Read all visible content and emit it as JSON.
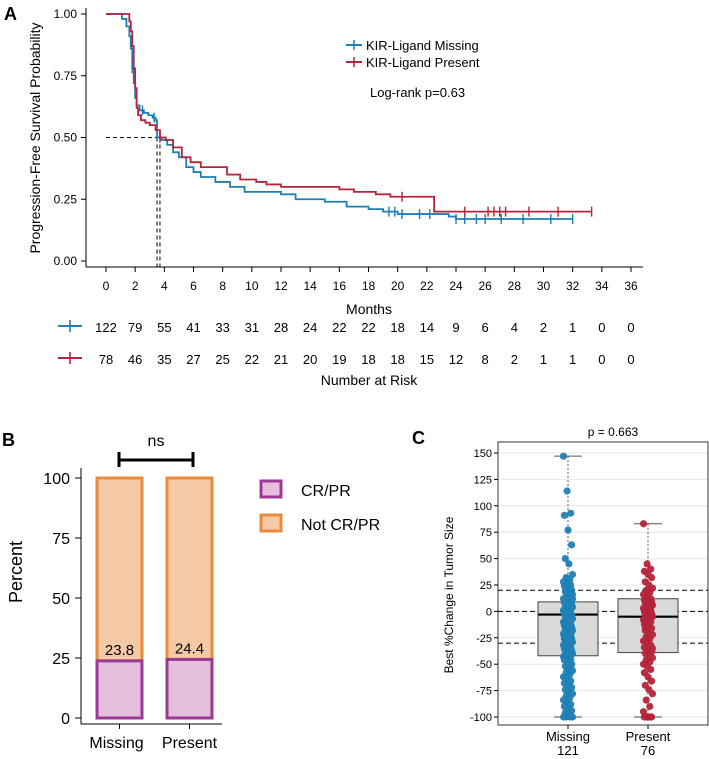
{
  "colors": {
    "missing": "#1f7fb4",
    "present": "#b5243a",
    "crpr_fill": "#e3bfdc",
    "crpr_edge": "#9b3a96",
    "notcrpr_fill": "#f5c8a6",
    "notcrpr_edge": "#ec8a3b",
    "box_fill": "#d9d9d9"
  },
  "chart_data": [
    {
      "panel": "A",
      "type": "line",
      "subtype": "kaplan-meier",
      "ylabel": "Progression-Free Survival Probability",
      "xlabel": "Months",
      "xlim": [
        -1,
        37.5
      ],
      "ylim": [
        0,
        1
      ],
      "xticks": [
        "0",
        "2",
        "4",
        "6",
        "8",
        "10",
        "12",
        "14",
        "16",
        "18",
        "20",
        "22",
        "24",
        "26",
        "28",
        "30",
        "32",
        "34",
        "36"
      ],
      "yticks": [
        "0.00",
        "0.25",
        "0.50",
        "0.75",
        "1.00"
      ],
      "annotation": "Log-rank p=0.63",
      "median_line": {
        "y": 0.5,
        "x_missing": 3.5,
        "x_present": 3.7
      },
      "series": [
        {
          "name": "KIR-Ligand Missing",
          "steps": [
            [
              0,
              1.0
            ],
            [
              1.0,
              1.0
            ],
            [
              1.1,
              0.98
            ],
            [
              1.4,
              0.95
            ],
            [
              1.6,
              0.91
            ],
            [
              1.7,
              0.86
            ],
            [
              1.8,
              0.78
            ],
            [
              1.9,
              0.72
            ],
            [
              2.0,
              0.66
            ],
            [
              2.1,
              0.63
            ],
            [
              2.3,
              0.61
            ],
            [
              2.6,
              0.6
            ],
            [
              2.9,
              0.59
            ],
            [
              3.2,
              0.58
            ],
            [
              3.4,
              0.57
            ],
            [
              3.5,
              0.5
            ],
            [
              3.8,
              0.49
            ],
            [
              4.2,
              0.47
            ],
            [
              4.6,
              0.44
            ],
            [
              5.0,
              0.42
            ],
            [
              5.5,
              0.38
            ],
            [
              6.0,
              0.36
            ],
            [
              6.5,
              0.34
            ],
            [
              7.5,
              0.32
            ],
            [
              8.5,
              0.3
            ],
            [
              9.5,
              0.28
            ],
            [
              12.0,
              0.27
            ],
            [
              13.0,
              0.25
            ],
            [
              15.0,
              0.24
            ],
            [
              16.5,
              0.22
            ],
            [
              18.0,
              0.21
            ],
            [
              19.0,
              0.2
            ],
            [
              20.0,
              0.19
            ],
            [
              23.5,
              0.18
            ],
            [
              24.0,
              0.17
            ],
            [
              32.0,
              0.17
            ]
          ],
          "censor_times": [
            1.8,
            2.5,
            3.3,
            19.4,
            19.8,
            20.3,
            21.5,
            22.2,
            24.0,
            24.6,
            25.4,
            26.0,
            27.1,
            28.6,
            30.5,
            32.0
          ]
        },
        {
          "name": "KIR-Ligand Present",
          "steps": [
            [
              0,
              1.0
            ],
            [
              1.5,
              1.0
            ],
            [
              1.6,
              0.97
            ],
            [
              1.7,
              0.93
            ],
            [
              1.8,
              0.87
            ],
            [
              1.9,
              0.78
            ],
            [
              2.0,
              0.7
            ],
            [
              2.1,
              0.62
            ],
            [
              2.2,
              0.59
            ],
            [
              2.4,
              0.57
            ],
            [
              2.7,
              0.56
            ],
            [
              3.0,
              0.55
            ],
            [
              3.4,
              0.53
            ],
            [
              3.7,
              0.5
            ],
            [
              4.1,
              0.49
            ],
            [
              4.6,
              0.46
            ],
            [
              5.2,
              0.42
            ],
            [
              5.8,
              0.4
            ],
            [
              6.5,
              0.38
            ],
            [
              8.3,
              0.35
            ],
            [
              9.2,
              0.33
            ],
            [
              10.3,
              0.32
            ],
            [
              11.0,
              0.31
            ],
            [
              12.0,
              0.3
            ],
            [
              16.0,
              0.29
            ],
            [
              17.0,
              0.28
            ],
            [
              18.5,
              0.27
            ],
            [
              19.5,
              0.26
            ],
            [
              22.5,
              0.2
            ],
            [
              26.0,
              0.2
            ],
            [
              33.3,
              0.2
            ]
          ],
          "censor_times": [
            3.7,
            20.3,
            24.6,
            26.2,
            26.6,
            27.0,
            27.4,
            29.0,
            31.0,
            33.3
          ]
        }
      ],
      "risk_table": {
        "label": "Number at Risk",
        "rows": [
          {
            "name": "KIR-Ligand Missing",
            "values": [
              "122",
              "79",
              "55",
              "41",
              "33",
              "31",
              "28",
              "24",
              "22",
              "22",
              "18",
              "14",
              "9",
              "6",
              "4",
              "2",
              "1",
              "0",
              "0"
            ]
          },
          {
            "name": "KIR-Ligand Present",
            "values": [
              "78",
              "46",
              "35",
              "27",
              "25",
              "22",
              "21",
              "20",
              "19",
              "18",
              "18",
              "15",
              "12",
              "8",
              "2",
              "1",
              "1",
              "0",
              "0"
            ]
          }
        ]
      }
    },
    {
      "panel": "B",
      "type": "bar",
      "subtype": "stacked-percent",
      "ylabel": "Percent",
      "categories": [
        "Missing",
        "Present"
      ],
      "ylim": [
        0,
        100
      ],
      "yticks": [
        "0",
        "25",
        "50",
        "75",
        "100"
      ],
      "series": [
        {
          "name": "CR/PR",
          "values": [
            23.8,
            24.4
          ],
          "labels": [
            "23.8",
            "24.4"
          ]
        },
        {
          "name": "Not CR/PR",
          "values": [
            76.2,
            75.6
          ]
        }
      ],
      "significance": "ns"
    },
    {
      "panel": "C",
      "type": "scatter",
      "subtype": "box-and-strip",
      "title": "p = 0.663",
      "ylabel": "Best %Change in Tumor Size",
      "ylim": [
        -110,
        155
      ],
      "yticks": [
        "-100",
        "-75",
        "-50",
        "-25",
        "0",
        "25",
        "50",
        "75",
        "100",
        "125",
        "150"
      ],
      "reference_lines": [
        20,
        0,
        -30
      ],
      "groups": [
        {
          "name": "Missing",
          "n": "121",
          "box": {
            "q1": -42,
            "median": -3,
            "q3": 9,
            "whisker_low": -100,
            "whisker_high": 147
          },
          "points": [
            147,
            114,
            93,
            91,
            77,
            63,
            50,
            45,
            35,
            32,
            30,
            28,
            27,
            25,
            24,
            22,
            20,
            19,
            17,
            16,
            15,
            14,
            12,
            11,
            10,
            9,
            8,
            7,
            6,
            5,
            4,
            3,
            2,
            1,
            0,
            -1,
            -2,
            -3,
            -4,
            -5,
            -6,
            -7,
            -8,
            -9,
            -10,
            -11,
            -12,
            -13,
            -14,
            -15,
            -16,
            -17,
            -18,
            -19,
            -20,
            -21,
            -22,
            -23,
            -24,
            -25,
            -26,
            -27,
            -28,
            -29,
            -30,
            -31,
            -32,
            -33,
            -34,
            -35,
            -36,
            -37,
            -38,
            -39,
            -40,
            -41,
            -42,
            -43,
            -44,
            -45,
            -46,
            -48,
            -50,
            -52,
            -54,
            -56,
            -58,
            -60,
            -62,
            -64,
            -66,
            -68,
            -70,
            -72,
            -74,
            -76,
            -78,
            -80,
            -82,
            -84,
            -86,
            -88,
            -90,
            -92,
            -94,
            -96,
            -98,
            -100,
            -100,
            -100,
            -100,
            -18,
            -22,
            -26,
            -8,
            -4,
            2,
            6,
            12,
            18,
            -34
          ]
        },
        {
          "name": "Present",
          "n": "76",
          "box": {
            "q1": -39,
            "median": -5,
            "q3": 12,
            "whisker_low": -100,
            "whisker_high": 83
          },
          "points": [
            83,
            45,
            40,
            38,
            35,
            32,
            28,
            25,
            22,
            20,
            18,
            16,
            14,
            12,
            11,
            10,
            9,
            8,
            7,
            6,
            5,
            4,
            3,
            2,
            1,
            0,
            -1,
            -2,
            -3,
            -4,
            -5,
            -6,
            -7,
            -8,
            -9,
            -10,
            -12,
            -14,
            -16,
            -18,
            -20,
            -22,
            -24,
            -26,
            -28,
            -30,
            -32,
            -34,
            -36,
            -38,
            -40,
            -42,
            -44,
            -46,
            -48,
            -50,
            -52,
            -55,
            -58,
            -62,
            -66,
            -70,
            -74,
            -78,
            -84,
            -90,
            -95,
            -100,
            -100,
            -100,
            -100,
            -100,
            -15,
            -25,
            -35,
            5
          ]
        }
      ]
    }
  ]
}
